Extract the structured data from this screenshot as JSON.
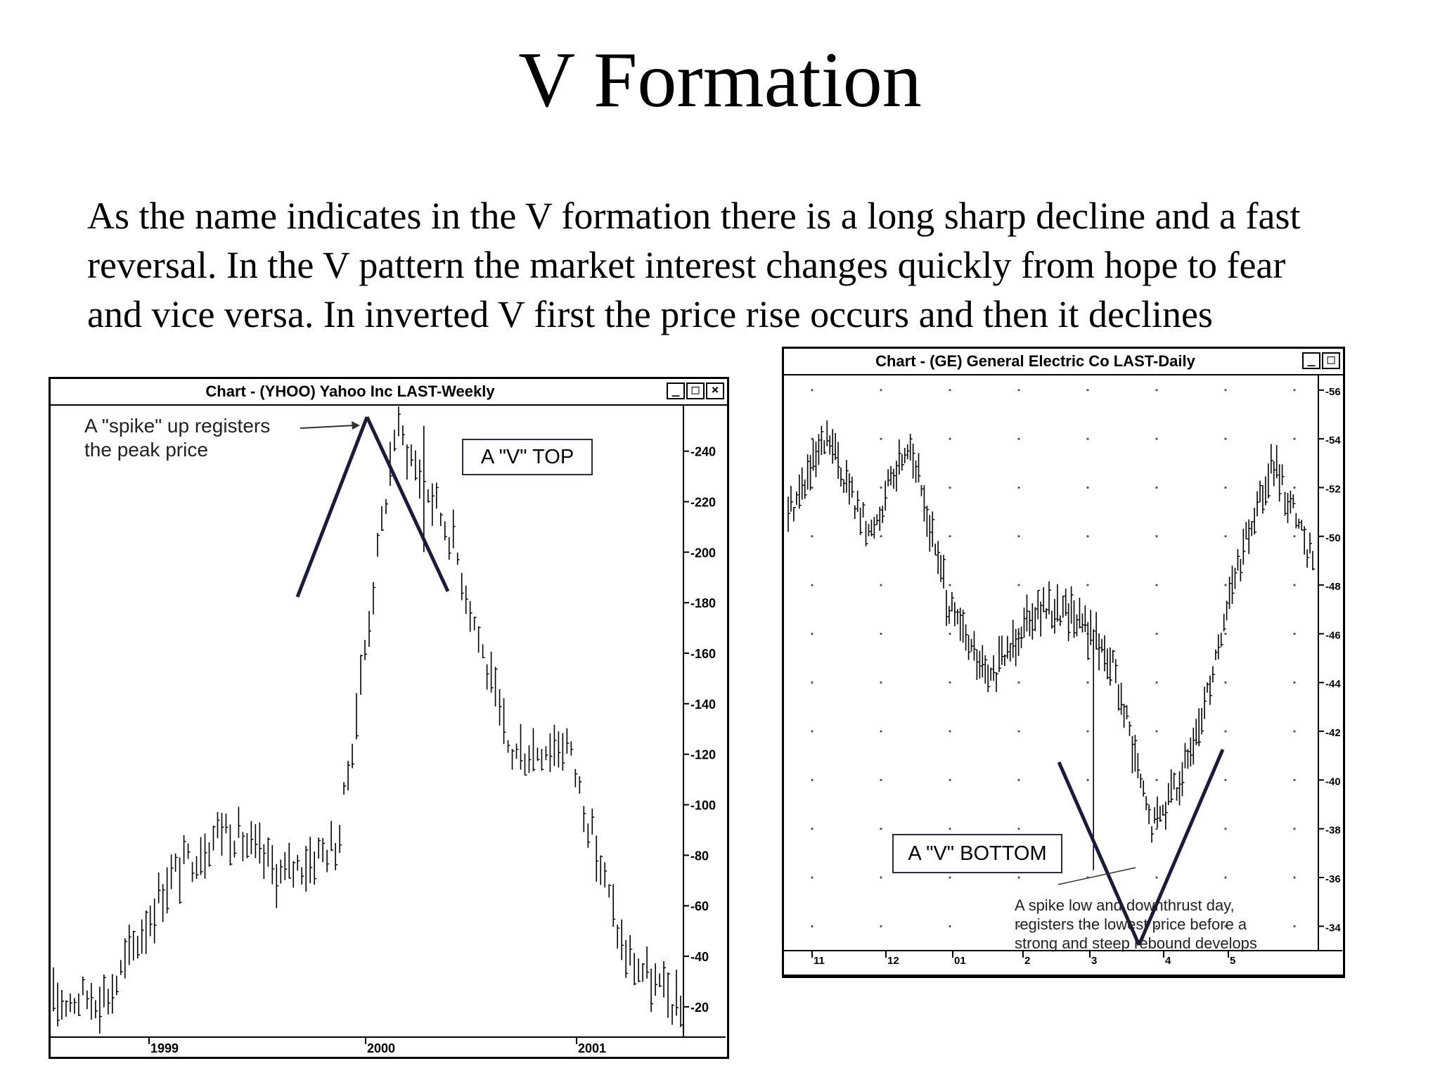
{
  "slide": {
    "title": "V Formation",
    "body_lines": [
      "As the name indicates in the V formation there is a long sharp decline and a fast",
      "reversal. In the V pattern the market interest changes quickly from hope to fear",
      "and vice versa. In inverted V first the price rise occurs and then it declines"
    ]
  },
  "window_buttons": [
    "_",
    "□",
    "×"
  ],
  "chart_data": [
    {
      "type": "line",
      "window_title": "Chart - (YHOO) Yahoo Inc LAST-Weekly",
      "title": "",
      "xlabel": "",
      "ylabel": "",
      "x_tick_labels": [
        "1999",
        "2000",
        "2001"
      ],
      "y_ticks": [
        20,
        40,
        60,
        80,
        100,
        120,
        140,
        160,
        180,
        200,
        220,
        240
      ],
      "ylim": [
        8,
        258
      ],
      "grid": false,
      "annotation_box": "A \"V\" TOP",
      "annotation_text": [
        "A \"spike\" up registers",
        "the peak price"
      ],
      "series": [
        {
          "x": [
            "Jul 1998",
            "Oct 1998",
            "Jan 1999",
            "Apr 1999",
            "Jul 1999",
            "Oct 1999",
            "Jan 2000",
            "Mar 2000",
            "Jun 2000",
            "Sep 2000",
            "Jan 2001",
            "Apr 2001"
          ],
          "values": [
            22,
            25,
            70,
            92,
            72,
            85,
            250,
            205,
            120,
            125,
            42,
            18
          ]
        }
      ]
    },
    {
      "type": "line",
      "window_title": "Chart - (GE) General Electric Co LAST-Daily",
      "title": "",
      "xlabel": "",
      "ylabel": "",
      "x_tick_labels": [
        "11",
        "12",
        "01",
        "2",
        "3",
        "4",
        "5"
      ],
      "y_ticks": [
        34,
        36,
        38,
        40,
        42,
        44,
        46,
        48,
        50,
        52,
        54,
        56
      ],
      "ylim": [
        33,
        56.6
      ],
      "grid": true,
      "annotation_box": "A \"V\" BOTTOM",
      "annotation_text": [
        "A spike low and downthrust day,",
        "registers the lowest price before a",
        "strong and steep rebound develops"
      ],
      "series": [
        {
          "x": [
            "Nov",
            "Nov",
            "Dec",
            "Dec",
            "Jan",
            "Jan",
            "Feb",
            "Feb",
            "Mar",
            "Mar",
            "Apr",
            "Apr",
            "May",
            "May"
          ],
          "values": [
            51,
            54,
            50,
            54,
            47,
            44,
            47,
            47,
            45,
            38,
            41,
            48,
            53,
            49
          ]
        }
      ]
    }
  ]
}
